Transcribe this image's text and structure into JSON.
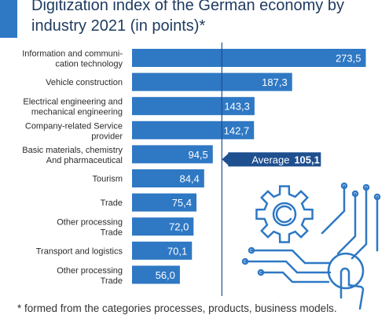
{
  "colors": {
    "bar": "#2f78c4",
    "accent": "#1e4f8f",
    "text": "#1e3a5f",
    "label": "#2b2b2b",
    "bar_text": "#ffffff",
    "value_dark": "#1e4f8f"
  },
  "decoration": {
    "icon": "gear-circuit-hand-icon"
  },
  "chart_data": {
    "type": "bar",
    "orientation": "horizontal",
    "title": "Digitization index of the German economy by industry 2021 (in points)*",
    "categories": [
      [
        "Information and communi-",
        "cation technology"
      ],
      [
        "Vehicle construction"
      ],
      [
        "Electrical engineering and",
        "mechanical engineering"
      ],
      [
        "Company-related Service",
        "provider"
      ],
      [
        "Basic materials, chemistry",
        "And pharmaceutical"
      ],
      [
        "Tourism"
      ],
      [
        "Trade"
      ],
      [
        "Other processing",
        "Trade"
      ],
      [
        "Transport and logistics"
      ],
      [
        "Other processing",
        "Trade"
      ]
    ],
    "values": [
      273.5,
      187.3,
      143.3,
      142.7,
      94.5,
      84.4,
      75.4,
      72.0,
      70.1,
      56.0
    ],
    "value_labels": [
      "273,5",
      "187,3",
      "143,3",
      "142,7",
      "94,5",
      "84,4",
      "75,4",
      "72,0",
      "70,1",
      "56,0"
    ],
    "xlim": [
      0,
      285
    ],
    "average": {
      "label": "Average",
      "value": 105.1,
      "value_label": "105,1"
    },
    "footnote": "* formed from the categories processes, products, business models."
  }
}
